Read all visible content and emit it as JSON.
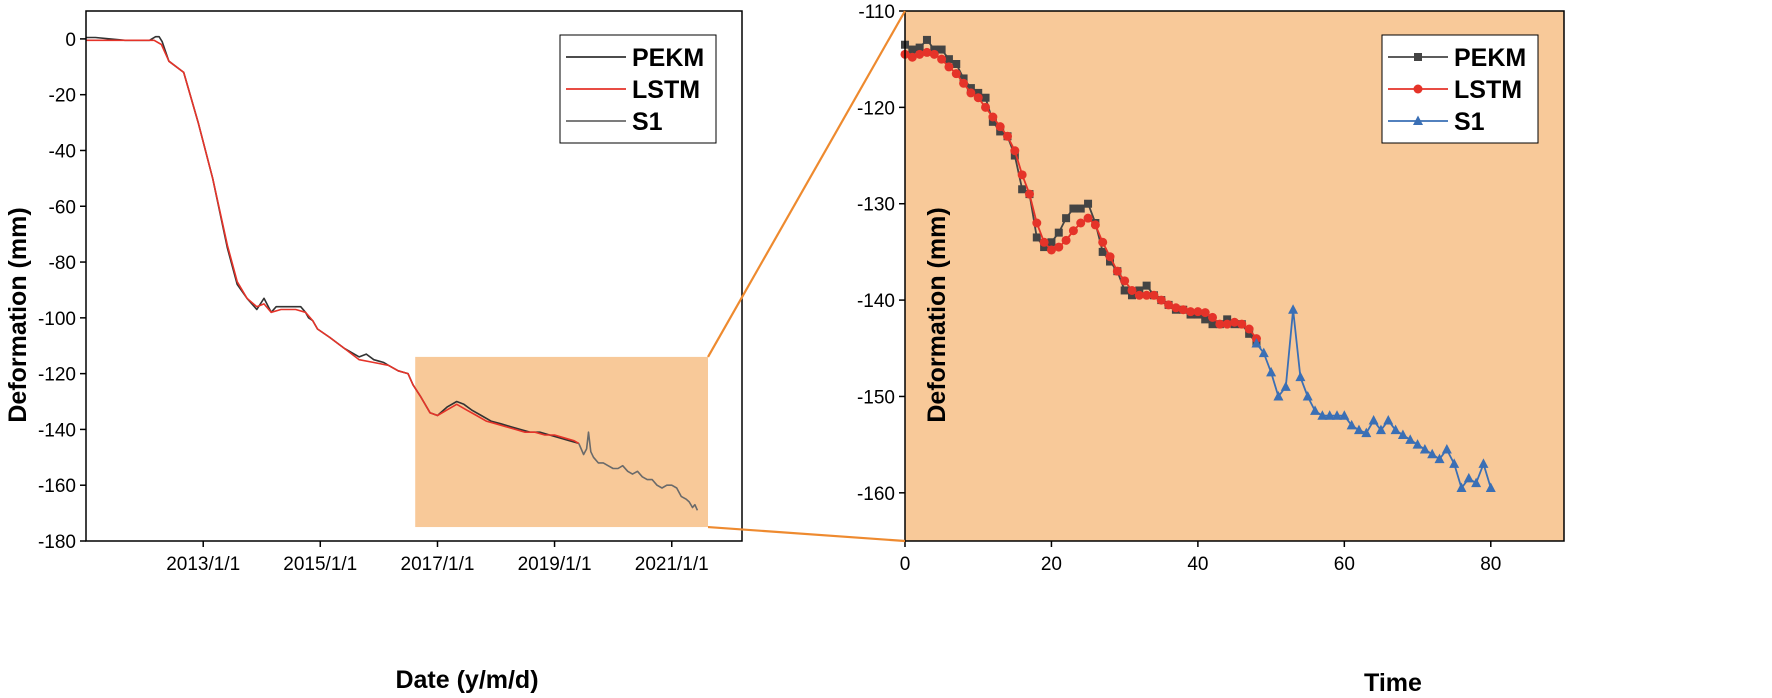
{
  "chart_data": [
    {
      "type": "line",
      "xlabel": "Date (y/m/d)",
      "ylabel": "Deformation (mm)",
      "x_scale": "date",
      "xlim": [
        "2011-01-01",
        "2022-03-15"
      ],
      "ylim": [
        -180,
        10
      ],
      "x_ticks": [
        "2013/1/1",
        "2015/1/1",
        "2017/1/1",
        "2019/1/1",
        "2021/1/1"
      ],
      "y_ticks": [
        0,
        -20,
        -40,
        -60,
        -80,
        -100,
        -120,
        -140,
        -160,
        -180
      ],
      "grid": false,
      "legend_position": "top-right",
      "legend": [
        "PEKM",
        "LSTM",
        "S1"
      ],
      "highlight_region": {
        "x_range": [
          "2016-08-15",
          "2021-08-15"
        ],
        "y_range": [
          -175,
          -114
        ],
        "color": "#f8c999"
      },
      "series": [
        {
          "name": "PEKM",
          "color": "#333333",
          "x": [
            "2011-01-01",
            "2011-03-01",
            "2011-06-01",
            "2011-09-01",
            "2011-12-01",
            "2012-02-01",
            "2012-03-10",
            "2012-04-01",
            "2012-04-20",
            "2012-06-01",
            "2012-09-01",
            "2012-12-01",
            "2013-03-01",
            "2013-06-01",
            "2013-08-01",
            "2013-10-01",
            "2013-12-01",
            "2014-01-15",
            "2014-03-01",
            "2014-04-01",
            "2014-05-15",
            "2014-06-01",
            "2014-07-01",
            "2014-08-01",
            "2014-09-01",
            "2014-10-01",
            "2014-10-20",
            "2014-11-15",
            "2014-12-15",
            "2015-03-01",
            "2015-06-01",
            "2015-09-01",
            "2015-10-15",
            "2015-12-01",
            "2016-02-01",
            "2016-03-01",
            "2016-05-01",
            "2016-07-01",
            "2016-08-01",
            "2016-09-15",
            "2016-11-15",
            "2017-01-01",
            "2017-03-01",
            "2017-05-01",
            "2017-06-15",
            "2017-08-01",
            "2017-10-01",
            "2017-12-01",
            "2018-02-01",
            "2018-04-01",
            "2018-06-01",
            "2018-08-01",
            "2018-10-01",
            "2018-12-01",
            "2019-02-01",
            "2019-04-01",
            "2019-06-01"
          ],
          "y": [
            0.5,
            0.5,
            0,
            -0.5,
            -0.5,
            -0.5,
            0.8,
            0.8,
            -1,
            -8,
            -12,
            -30,
            -50,
            -75,
            -88,
            -93,
            -97,
            -93,
            -98,
            -96,
            -96,
            -96,
            -96,
            -96,
            -96,
            -98,
            -100,
            -101,
            -104,
            -107,
            -111,
            -114,
            -113,
            -115,
            -116,
            -117,
            -119,
            -120,
            -124,
            -128,
            -134,
            -135,
            -132,
            -130,
            -131,
            -133,
            -135,
            -137,
            -138,
            -139,
            -140,
            -141,
            -141,
            -142,
            -143,
            -144,
            -145
          ]
        },
        {
          "name": "LSTM",
          "color": "#e53329",
          "x": [
            "2011-01-01",
            "2011-06-01",
            "2011-12-01",
            "2012-03-01",
            "2012-04-15",
            "2012-06-01",
            "2012-09-01",
            "2012-12-01",
            "2013-03-01",
            "2013-06-01",
            "2013-08-01",
            "2013-10-01",
            "2013-12-01",
            "2014-01-15",
            "2014-03-01",
            "2014-05-01",
            "2014-08-01",
            "2014-10-01",
            "2014-11-15",
            "2014-12-15",
            "2015-03-01",
            "2015-06-01",
            "2015-09-01",
            "2015-12-01",
            "2016-03-01",
            "2016-05-01",
            "2016-07-01",
            "2016-08-01",
            "2016-09-15",
            "2016-11-15",
            "2017-01-01",
            "2017-03-01",
            "2017-05-01",
            "2017-07-01",
            "2017-09-01",
            "2017-11-01",
            "2018-01-01",
            "2018-03-01",
            "2018-05-01",
            "2018-07-01",
            "2018-09-01",
            "2018-11-01",
            "2019-01-01",
            "2019-03-01",
            "2019-05-01",
            "2019-06-01"
          ],
          "y": [
            -0.5,
            -0.5,
            -0.5,
            -0.5,
            -2,
            -8,
            -12,
            -30,
            -50,
            -74,
            -87,
            -93,
            -96,
            -95,
            -98,
            -97,
            -97,
            -98,
            -101,
            -104,
            -107,
            -111,
            -115,
            -116,
            -117,
            -119,
            -120,
            -124,
            -128,
            -134,
            -135,
            -133,
            -131,
            -133,
            -135,
            -137,
            -138,
            -139,
            -140,
            -141,
            -141,
            -142,
            -142,
            -143,
            -144,
            -145
          ]
        },
        {
          "name": "S1",
          "color": "#6a6a6a",
          "x": [
            "2019-06-01",
            "2019-07-01",
            "2019-07-20",
            "2019-08-01",
            "2019-08-15",
            "2019-09-01",
            "2019-10-01",
            "2019-11-01",
            "2019-12-01",
            "2020-01-01",
            "2020-02-01",
            "2020-03-01",
            "2020-04-01",
            "2020-05-01",
            "2020-06-01",
            "2020-07-01",
            "2020-08-01",
            "2020-09-01",
            "2020-10-01",
            "2020-11-01",
            "2020-12-01",
            "2021-01-01",
            "2021-02-01",
            "2021-03-01",
            "2021-04-01",
            "2021-04-20",
            "2021-05-10",
            "2021-05-25",
            "2021-06-10"
          ],
          "y": [
            -145,
            -149,
            -147,
            -141,
            -148,
            -150,
            -152,
            -152,
            -153,
            -154,
            -154,
            -153,
            -155,
            -156,
            -155,
            -157,
            -158,
            -158,
            -160,
            -161,
            -160,
            -160,
            -161,
            -164,
            -165,
            -166,
            -168,
            -167,
            -169
          ]
        }
      ]
    },
    {
      "type": "line",
      "xlabel": "Time",
      "ylabel": "Deformation (mm)",
      "xlim": [
        0,
        90
      ],
      "ylim": [
        -165,
        -110
      ],
      "x_ticks": [
        0,
        20,
        40,
        60,
        80
      ],
      "y_ticks": [
        -110,
        -120,
        -130,
        -140,
        -150,
        -160
      ],
      "grid": false,
      "legend_position": "top-right",
      "legend": [
        "PEKM",
        "LSTM",
        "S1"
      ],
      "background_color": "#f8c999",
      "series": [
        {
          "name": "PEKM",
          "color": "#444444",
          "marker": "square",
          "x": [
            0,
            1,
            2,
            3,
            4,
            5,
            6,
            7,
            8,
            9,
            10,
            11,
            12,
            13,
            14,
            15,
            16,
            17,
            18,
            19,
            20,
            21,
            22,
            23,
            24,
            25,
            26,
            27,
            28,
            29,
            30,
            31,
            32,
            33,
            34,
            35,
            36,
            37,
            38,
            39,
            40,
            41,
            42,
            43,
            44,
            45,
            46,
            47,
            48
          ],
          "y": [
            -113.5,
            -114,
            -113.8,
            -113,
            -114,
            -114,
            -115,
            -115.5,
            -117,
            -118,
            -118.5,
            -119,
            -121.5,
            -122.5,
            -123,
            -125,
            -128.5,
            -129,
            -133.5,
            -134.5,
            -134,
            -133,
            -131.5,
            -130.5,
            -130.5,
            -130,
            -132,
            -135,
            -136,
            -137,
            -139,
            -139.5,
            -139,
            -138.5,
            -139.5,
            -140,
            -140.5,
            -141,
            -141,
            -141.5,
            -141.5,
            -142,
            -142.5,
            -142.5,
            -142,
            -142.5,
            -142.5,
            -143.5,
            -144.5
          ]
        },
        {
          "name": "LSTM",
          "color": "#e53329",
          "marker": "circle",
          "x": [
            0,
            1,
            2,
            3,
            4,
            5,
            6,
            7,
            8,
            9,
            10,
            11,
            12,
            13,
            14,
            15,
            16,
            17,
            18,
            19,
            20,
            21,
            22,
            23,
            24,
            25,
            26,
            27,
            28,
            29,
            30,
            31,
            32,
            33,
            34,
            35,
            36,
            37,
            38,
            39,
            40,
            41,
            42,
            43,
            44,
            45,
            46,
            47,
            48
          ],
          "y": [
            -114.5,
            -114.8,
            -114.5,
            -114.3,
            -114.5,
            -115,
            -115.8,
            -116.5,
            -117.5,
            -118.5,
            -119,
            -120,
            -121,
            -122,
            -123,
            -124.5,
            -127,
            -129,
            -132,
            -134,
            -134.8,
            -134.5,
            -133.8,
            -132.8,
            -132,
            -131.5,
            -132.2,
            -134,
            -135.5,
            -137,
            -138,
            -139,
            -139.5,
            -139.5,
            -139.5,
            -140,
            -140.5,
            -140.8,
            -141,
            -141.2,
            -141.2,
            -141.3,
            -141.8,
            -142.5,
            -142.5,
            -142.3,
            -142.5,
            -143,
            -144
          ]
        },
        {
          "name": "S1",
          "color": "#3a6fb5",
          "marker": "triangle",
          "x": [
            48,
            49,
            50,
            51,
            52,
            53,
            54,
            55,
            56,
            57,
            58,
            59,
            60,
            61,
            62,
            63,
            64,
            65,
            66,
            67,
            68,
            69,
            70,
            71,
            72,
            73,
            74,
            75,
            76,
            77,
            78,
            79,
            80
          ],
          "y": [
            -144.5,
            -145.5,
            -147.5,
            -150,
            -149,
            -141,
            -148,
            -150,
            -151.5,
            -152,
            -152,
            -152,
            -152,
            -153,
            -153.5,
            -153.8,
            -152.5,
            -153.5,
            -152.5,
            -153.5,
            -154,
            -154.5,
            -155,
            -155.5,
            -156,
            -156.5,
            -155.5,
            -157,
            -159.5,
            -158.5,
            -159,
            -157,
            -159.5
          ]
        }
      ]
    }
  ]
}
